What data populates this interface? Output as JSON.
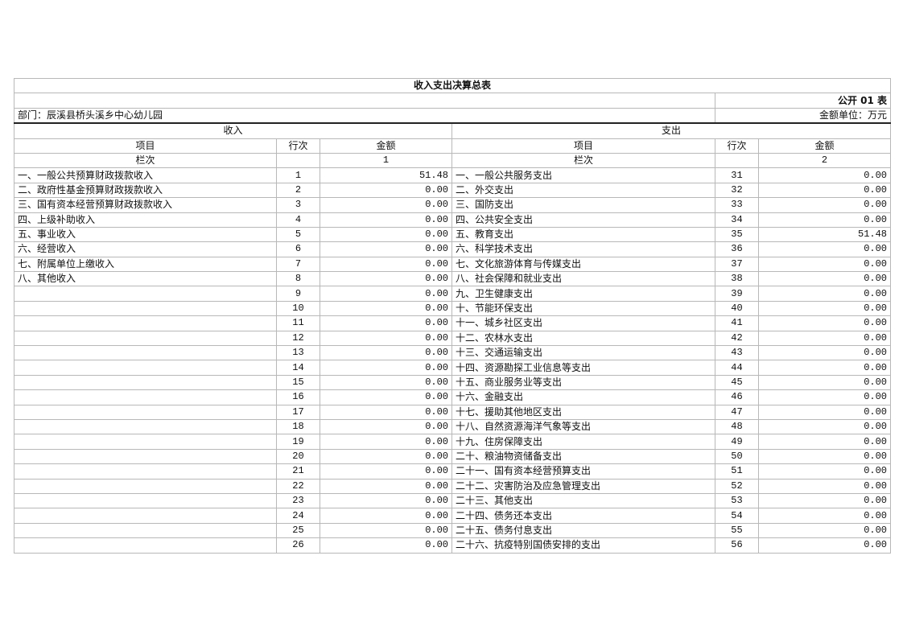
{
  "title": "收入支出决算总表",
  "table_code": "公开 01 表",
  "department": "部门：辰溪县桥头溪乡中心幼儿园",
  "unit": "金额单位：万元",
  "income_header": "收入",
  "expense_header": "支出",
  "col_item": "项目",
  "col_line": "行次",
  "col_amount": "金额",
  "col_index_label": "栏次",
  "income_col_index": "1",
  "expense_col_index": "2",
  "rows": [
    {
      "in_item": "一、一般公共预算财政拨款收入",
      "in_line": "1",
      "in_amt": "51.48",
      "ex_item": "一、一般公共服务支出",
      "ex_line": "31",
      "ex_amt": "0.00"
    },
    {
      "in_item": "二、政府性基金预算财政拨款收入",
      "in_line": "2",
      "in_amt": "0.00",
      "ex_item": "二、外交支出",
      "ex_line": "32",
      "ex_amt": "0.00"
    },
    {
      "in_item": "三、国有资本经营预算财政拨款收入",
      "in_line": "3",
      "in_amt": "0.00",
      "ex_item": "三、国防支出",
      "ex_line": "33",
      "ex_amt": "0.00"
    },
    {
      "in_item": "四、上级补助收入",
      "in_line": "4",
      "in_amt": "0.00",
      "ex_item": "四、公共安全支出",
      "ex_line": "34",
      "ex_amt": "0.00"
    },
    {
      "in_item": "五、事业收入",
      "in_line": "5",
      "in_amt": "0.00",
      "ex_item": "五、教育支出",
      "ex_line": "35",
      "ex_amt": "51.48"
    },
    {
      "in_item": "六、经营收入",
      "in_line": "6",
      "in_amt": "0.00",
      "ex_item": "六、科学技术支出",
      "ex_line": "36",
      "ex_amt": "0.00"
    },
    {
      "in_item": "七、附属单位上缴收入",
      "in_line": "7",
      "in_amt": "0.00",
      "ex_item": "七、文化旅游体育与传媒支出",
      "ex_line": "37",
      "ex_amt": "0.00"
    },
    {
      "in_item": "八、其他收入",
      "in_line": "8",
      "in_amt": "0.00",
      "ex_item": "八、社会保障和就业支出",
      "ex_line": "38",
      "ex_amt": "0.00"
    },
    {
      "in_item": "",
      "in_line": "9",
      "in_amt": "0.00",
      "ex_item": "九、卫生健康支出",
      "ex_line": "39",
      "ex_amt": "0.00"
    },
    {
      "in_item": "",
      "in_line": "10",
      "in_amt": "0.00",
      "ex_item": "十、节能环保支出",
      "ex_line": "40",
      "ex_amt": "0.00"
    },
    {
      "in_item": "",
      "in_line": "11",
      "in_amt": "0.00",
      "ex_item": "十一、城乡社区支出",
      "ex_line": "41",
      "ex_amt": "0.00"
    },
    {
      "in_item": "",
      "in_line": "12",
      "in_amt": "0.00",
      "ex_item": "十二、农林水支出",
      "ex_line": "42",
      "ex_amt": "0.00"
    },
    {
      "in_item": "",
      "in_line": "13",
      "in_amt": "0.00",
      "ex_item": "十三、交通运输支出",
      "ex_line": "43",
      "ex_amt": "0.00"
    },
    {
      "in_item": "",
      "in_line": "14",
      "in_amt": "0.00",
      "ex_item": "十四、资源勘探工业信息等支出",
      "ex_line": "44",
      "ex_amt": "0.00"
    },
    {
      "in_item": "",
      "in_line": "15",
      "in_amt": "0.00",
      "ex_item": "十五、商业服务业等支出",
      "ex_line": "45",
      "ex_amt": "0.00"
    },
    {
      "in_item": "",
      "in_line": "16",
      "in_amt": "0.00",
      "ex_item": "十六、金融支出",
      "ex_line": "46",
      "ex_amt": "0.00"
    },
    {
      "in_item": "",
      "in_line": "17",
      "in_amt": "0.00",
      "ex_item": "十七、援助其他地区支出",
      "ex_line": "47",
      "ex_amt": "0.00"
    },
    {
      "in_item": "",
      "in_line": "18",
      "in_amt": "0.00",
      "ex_item": "十八、自然资源海洋气象等支出",
      "ex_line": "48",
      "ex_amt": "0.00"
    },
    {
      "in_item": "",
      "in_line": "19",
      "in_amt": "0.00",
      "ex_item": "十九、住房保障支出",
      "ex_line": "49",
      "ex_amt": "0.00"
    },
    {
      "in_item": "",
      "in_line": "20",
      "in_amt": "0.00",
      "ex_item": "二十、粮油物资储备支出",
      "ex_line": "50",
      "ex_amt": "0.00"
    },
    {
      "in_item": "",
      "in_line": "21",
      "in_amt": "0.00",
      "ex_item": "二十一、国有资本经营预算支出",
      "ex_line": "51",
      "ex_amt": "0.00"
    },
    {
      "in_item": "",
      "in_line": "22",
      "in_amt": "0.00",
      "ex_item": "二十二、灾害防治及应急管理支出",
      "ex_line": "52",
      "ex_amt": "0.00"
    },
    {
      "in_item": "",
      "in_line": "23",
      "in_amt": "0.00",
      "ex_item": "二十三、其他支出",
      "ex_line": "53",
      "ex_amt": "0.00"
    },
    {
      "in_item": "",
      "in_line": "24",
      "in_amt": "0.00",
      "ex_item": "二十四、债务还本支出",
      "ex_line": "54",
      "ex_amt": "0.00"
    },
    {
      "in_item": "",
      "in_line": "25",
      "in_amt": "0.00",
      "ex_item": "二十五、债务付息支出",
      "ex_line": "55",
      "ex_amt": "0.00"
    },
    {
      "in_item": "",
      "in_line": "26",
      "in_amt": "0.00",
      "ex_item": "二十六、抗疫特别国债安排的支出",
      "ex_line": "56",
      "ex_amt": "0.00"
    }
  ]
}
